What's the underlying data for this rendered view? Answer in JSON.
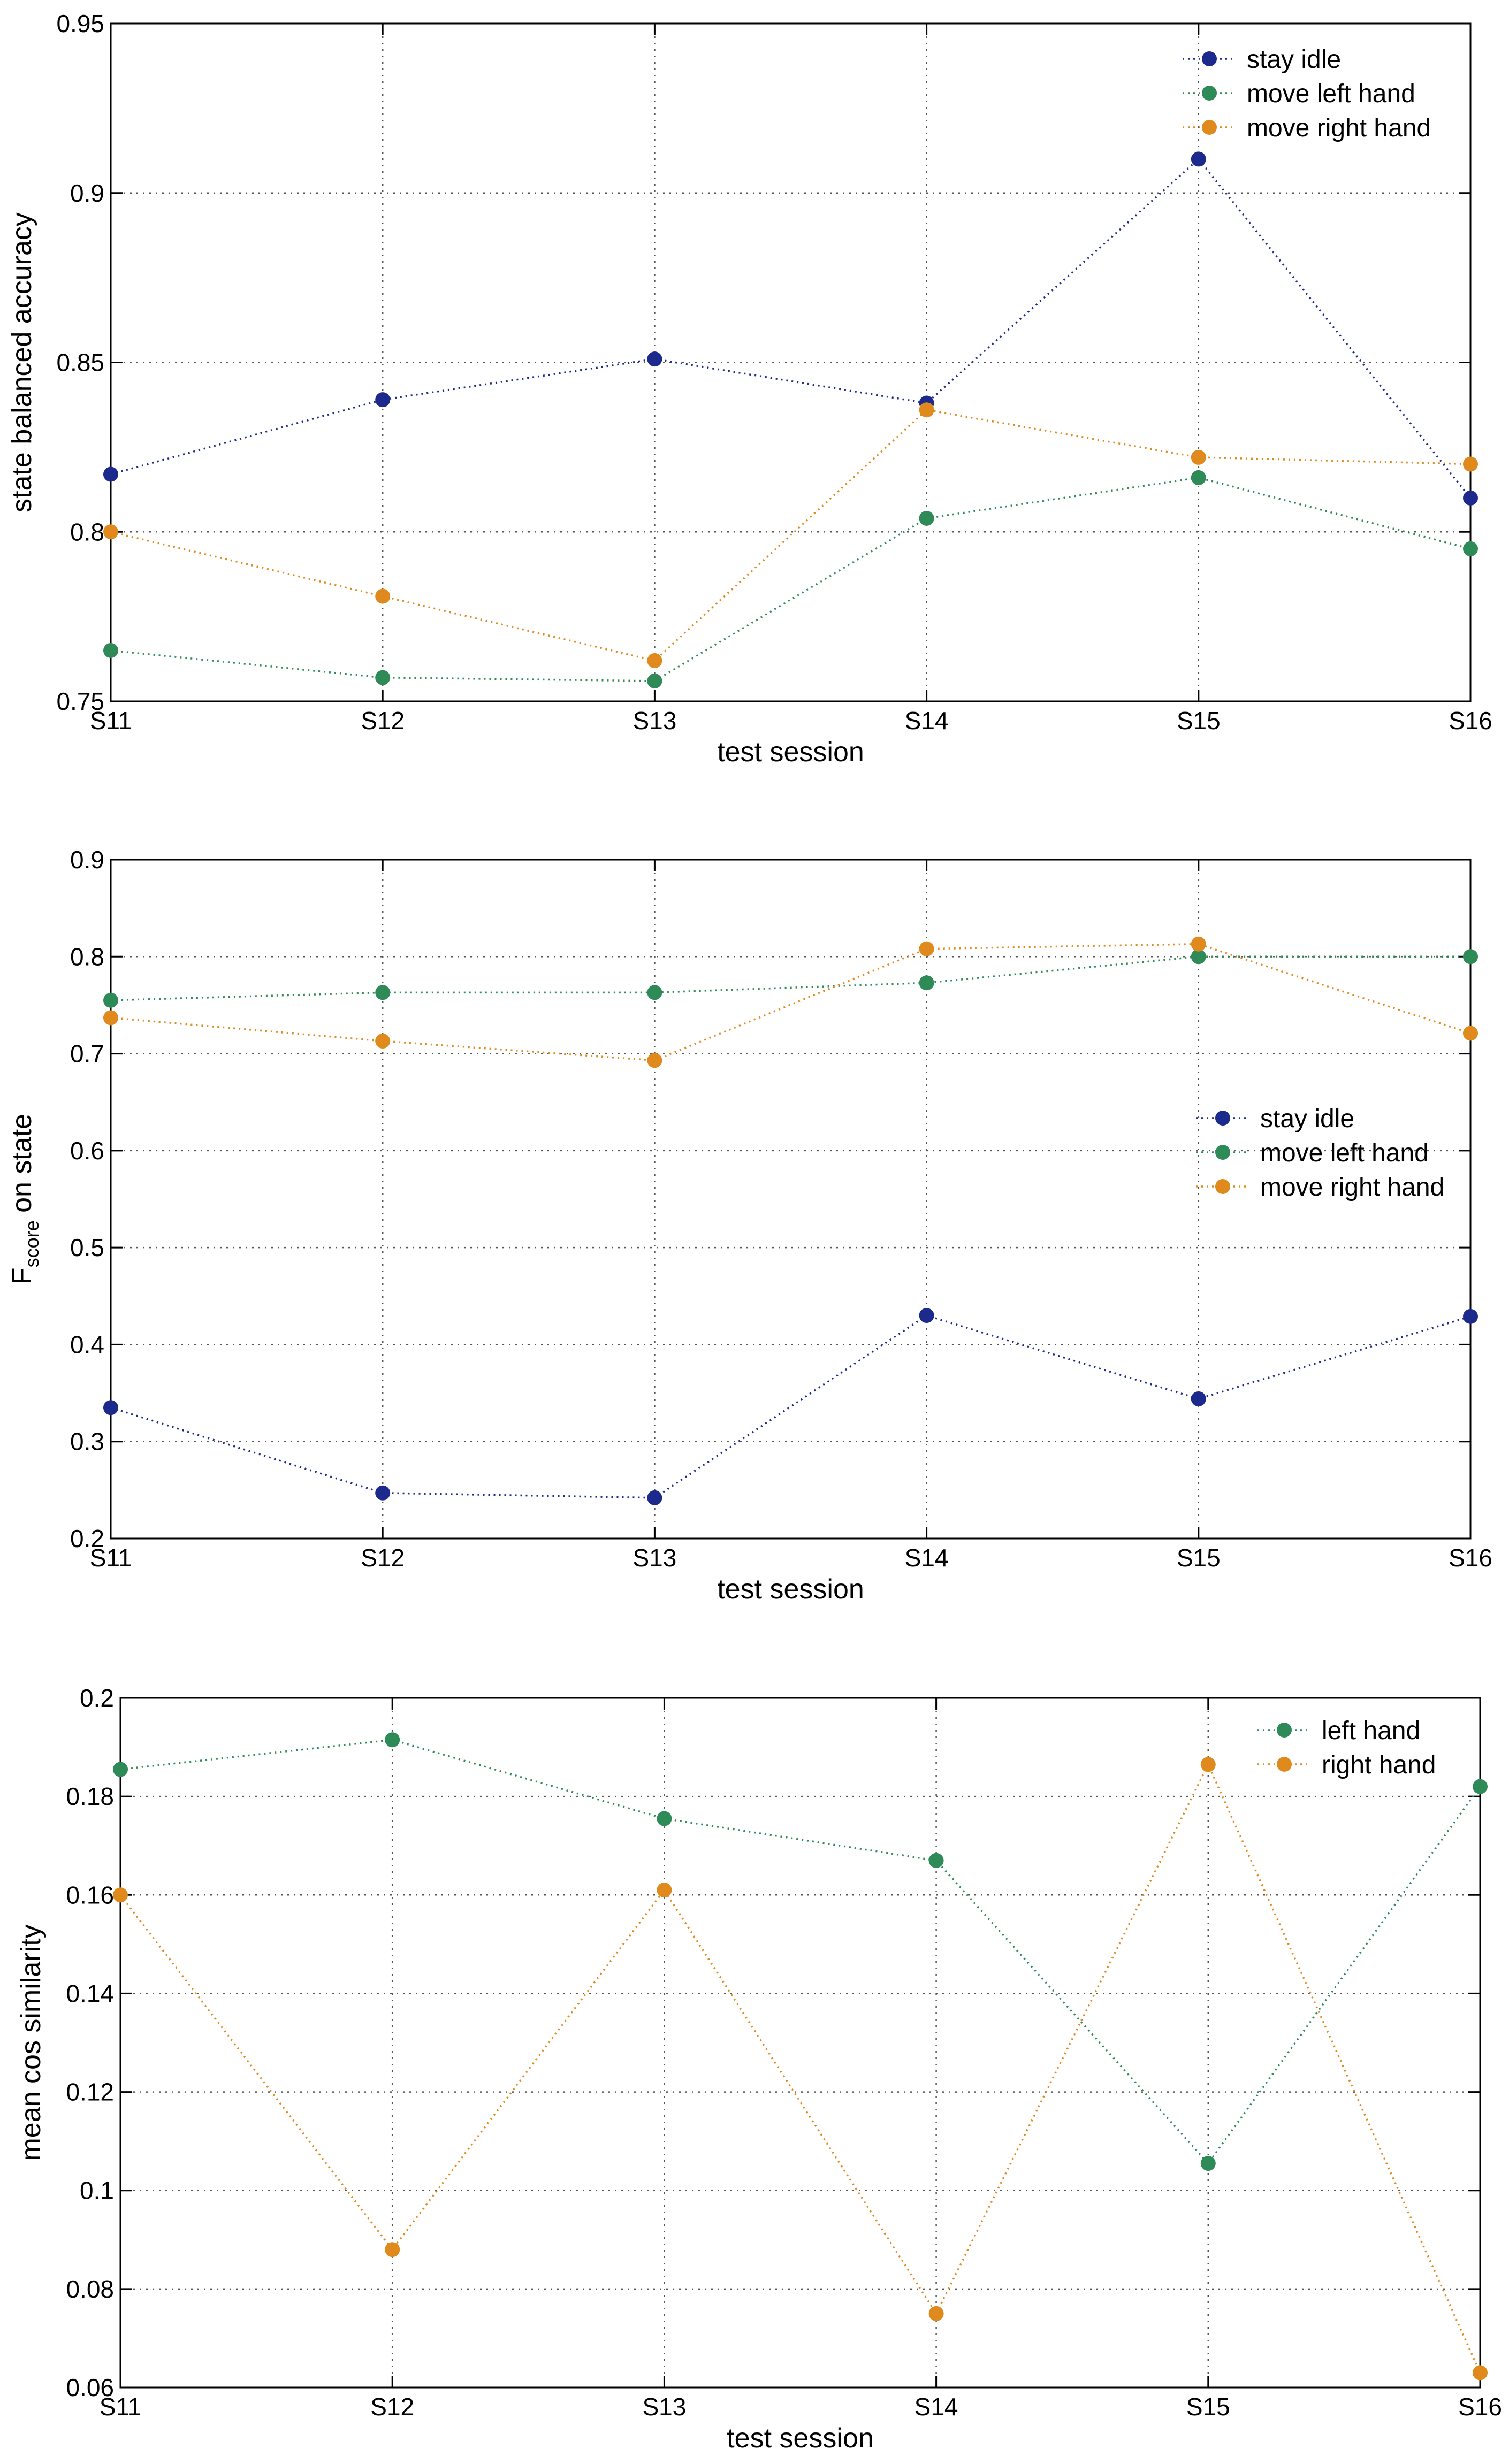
{
  "colors": {
    "stay_idle": "#1b2a8c",
    "left": "#2e8b57",
    "right": "#e08a1e",
    "grid": "#555555",
    "axis": "#000000"
  },
  "chart_data": [
    {
      "type": "line",
      "title": "",
      "xlabel": "test session",
      "ylabel": "state balanced accuracy",
      "categories": [
        "S11",
        "S12",
        "S13",
        "S14",
        "S15",
        "S16"
      ],
      "ylim": [
        0.75,
        0.95
      ],
      "yticks": [
        0.75,
        0.8,
        0.85,
        0.9,
        0.95
      ],
      "ytick_labels": [
        "0.75",
        "0.8",
        "0.85",
        "0.9",
        "0.95"
      ],
      "grid": true,
      "legend_position": "top-right",
      "series": [
        {
          "name": "stay idle",
          "color_key": "stay_idle",
          "values": [
            0.817,
            0.839,
            0.851,
            0.838,
            0.91,
            0.81
          ]
        },
        {
          "name": "move left hand",
          "color_key": "left",
          "values": [
            0.765,
            0.757,
            0.756,
            0.804,
            0.816,
            0.795
          ]
        },
        {
          "name": "move right hand",
          "color_key": "right",
          "values": [
            0.8,
            0.781,
            0.762,
            0.836,
            0.822,
            0.82
          ]
        }
      ]
    },
    {
      "type": "line",
      "title": "",
      "xlabel": "test session",
      "ylabel_main": "F",
      "ylabel_sub": "score",
      "ylabel_rest": " on state",
      "categories": [
        "S11",
        "S12",
        "S13",
        "S14",
        "S15",
        "S16"
      ],
      "ylim": [
        0.2,
        0.9
      ],
      "yticks": [
        0.2,
        0.3,
        0.4,
        0.5,
        0.6,
        0.7,
        0.8,
        0.9
      ],
      "ytick_labels": [
        "0.2",
        "0.3",
        "0.4",
        "0.5",
        "0.6",
        "0.7",
        "0.8",
        "0.9"
      ],
      "grid": true,
      "legend_position": "center-right",
      "series": [
        {
          "name": "stay idle",
          "color_key": "stay_idle",
          "values": [
            0.335,
            0.247,
            0.242,
            0.43,
            0.344,
            0.429
          ]
        },
        {
          "name": "move left hand",
          "color_key": "left",
          "values": [
            0.755,
            0.763,
            0.763,
            0.773,
            0.8,
            0.8
          ]
        },
        {
          "name": "move right hand",
          "color_key": "right",
          "values": [
            0.737,
            0.713,
            0.693,
            0.808,
            0.813,
            0.721
          ]
        }
      ]
    },
    {
      "type": "line",
      "title": "",
      "xlabel": "test session",
      "ylabel": "mean cos similarity",
      "categories": [
        "S11",
        "S12",
        "S13",
        "S14",
        "S15",
        "S16"
      ],
      "ylim": [
        0.06,
        0.2
      ],
      "yticks": [
        0.06,
        0.08,
        0.1,
        0.12,
        0.14,
        0.16,
        0.18,
        0.2
      ],
      "ytick_labels": [
        "0.06",
        "0.08",
        "0.1",
        "0.12",
        "0.14",
        "0.16",
        "0.18",
        "0.2"
      ],
      "grid": true,
      "legend_position": "top-right",
      "series": [
        {
          "name": "left hand",
          "color_key": "left",
          "values": [
            0.1855,
            0.1915,
            0.1755,
            0.167,
            0.1055,
            0.182
          ]
        },
        {
          "name": "right hand",
          "color_key": "right",
          "values": [
            0.16,
            0.088,
            0.161,
            0.075,
            0.1865,
            0.063
          ]
        }
      ]
    }
  ]
}
